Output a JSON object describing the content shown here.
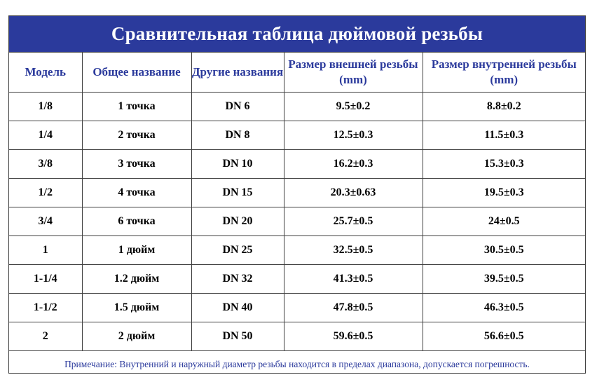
{
  "title": "Сравнительная таблица дюймовой резьбы",
  "headers": [
    "Модель",
    "Общее название",
    "Другие названия",
    "Размер внешней резьбы (mm)",
    "Размер внутренней резьбы (mm)"
  ],
  "rows": [
    [
      "1/8",
      "1 точка",
      "DN 6",
      "9.5±0.2",
      "8.8±0.2"
    ],
    [
      "1/4",
      "2 точка",
      "DN 8",
      "12.5±0.3",
      "11.5±0.3"
    ],
    [
      "3/8",
      "3 точка",
      "DN 10",
      "16.2±0.3",
      "15.3±0.3"
    ],
    [
      "1/2",
      "4 точка",
      "DN 15",
      "20.3±0.63",
      "19.5±0.3"
    ],
    [
      "3/4",
      "6 точка",
      "DN 20",
      "25.7±0.5",
      "24±0.5"
    ],
    [
      "1",
      "1 дюйм",
      "DN 25",
      "32.5±0.5",
      "30.5±0.5"
    ],
    [
      "1-1/4",
      "1.2 дюйм",
      "DN 32",
      "41.3±0.5",
      "39.5±0.5"
    ],
    [
      "1-1/2",
      "1.5 дюйм",
      "DN 40",
      "47.8±0.5",
      "46.3±0.5"
    ],
    [
      "2",
      "2 дюйм",
      "DN 50",
      "59.6±0.5",
      "56.6±0.5"
    ]
  ],
  "note": "Примечание: Внутренний и наружный диаметр резьбы находится в пределах диапазона, допускается погрешность.",
  "colors": {
    "accent": "#2b3a9c",
    "border": "#3f3f3f",
    "text": "#000000"
  }
}
